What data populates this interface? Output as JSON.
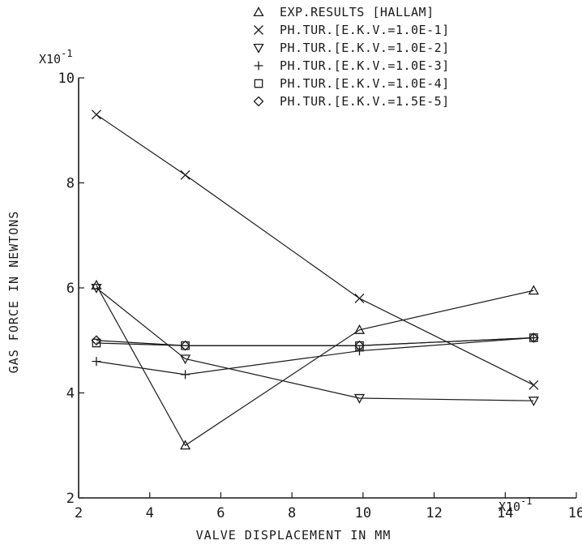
{
  "chart_data": {
    "type": "line",
    "xlabel": "VALVE DISPLACEMENT IN MM",
    "ylabel": "GAS FORCE IN NEWTONS",
    "x_multiplier_label": "X10",
    "x_multiplier_exp": "-1",
    "y_multiplier_label": "X10",
    "y_multiplier_exp": "-1",
    "xlim": [
      2,
      16
    ],
    "ylim": [
      2,
      10
    ],
    "x_ticks": [
      2,
      4,
      6,
      8,
      10,
      12,
      14,
      16
    ],
    "y_ticks": [
      2,
      4,
      6,
      8,
      10
    ],
    "x_tick_labels": [
      "2",
      "4",
      "6",
      "8",
      "10",
      "12",
      "14",
      "16"
    ],
    "y_tick_labels": [
      "2",
      "4",
      "6",
      "8",
      "10"
    ],
    "grid": false,
    "legend_position": "top-right",
    "x": [
      2.5,
      5.0,
      9.9,
      14.8
    ],
    "series": [
      {
        "name": "EXP.RESULTS [HALLAM]",
        "marker": "triangle",
        "values": [
          6.05,
          3.0,
          5.2,
          5.95
        ]
      },
      {
        "name": "PH.TUR.[E.K.V.=1.0E-1]",
        "marker": "x",
        "values": [
          9.3,
          8.15,
          5.8,
          4.15
        ]
      },
      {
        "name": "PH.TUR.[E.K.V.=1.0E-2]",
        "marker": "triangle-down",
        "values": [
          6.0,
          4.65,
          3.9,
          3.85
        ]
      },
      {
        "name": "PH.TUR.[E.K.V.=1.0E-3]",
        "marker": "plus",
        "values": [
          4.6,
          4.35,
          4.8,
          5.05
        ]
      },
      {
        "name": "PH.TUR.[E.K.V.=1.0E-4]",
        "marker": "square",
        "values": [
          4.95,
          4.9,
          4.9,
          5.05
        ]
      },
      {
        "name": "PH.TUR.[E.K.V.=1.5E-5]",
        "marker": "diamond",
        "values": [
          5.0,
          4.9,
          4.9,
          5.05
        ]
      }
    ]
  }
}
